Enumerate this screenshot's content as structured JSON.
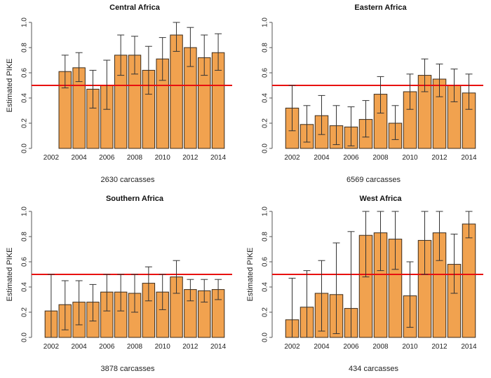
{
  "chart_data": [
    {
      "type": "bar",
      "title": "Central Africa",
      "ylabel": "Estimated PIKE",
      "caption": "2630 carcasses",
      "ylim": [
        0,
        1.0
      ],
      "yticks": [
        "0.0",
        "0.2",
        "0.4",
        "0.6",
        "0.8",
        "1.0"
      ],
      "xtick_labels": [
        "2002",
        "2004",
        "2006",
        "2008",
        "2010",
        "2012",
        "2014"
      ],
      "categories": [
        "2002",
        "2003",
        "2004",
        "2005",
        "2006",
        "2007",
        "2008",
        "2009",
        "2010",
        "2011",
        "2012",
        "2013",
        "2014"
      ],
      "values": [
        null,
        0.61,
        0.64,
        0.47,
        0.5,
        0.74,
        0.74,
        0.62,
        0.71,
        0.9,
        0.8,
        0.72,
        0.76
      ],
      "err_low": [
        null,
        0.48,
        0.53,
        0.32,
        0.31,
        0.58,
        0.59,
        0.43,
        0.54,
        0.77,
        0.65,
        0.58,
        0.62
      ],
      "err_high": [
        null,
        0.74,
        0.76,
        0.62,
        0.7,
        0.9,
        0.89,
        0.81,
        0.88,
        1.0,
        0.96,
        0.9,
        0.91
      ],
      "reference_line": 0.5
    },
    {
      "type": "bar",
      "title": "Eastern Africa",
      "ylabel": "",
      "caption": "6569 carcasses",
      "ylim": [
        0,
        1.0
      ],
      "yticks": [
        "0.0",
        "0.2",
        "0.4",
        "0.6",
        "0.8",
        "1.0"
      ],
      "xtick_labels": [
        "2002",
        "2004",
        "2006",
        "2008",
        "2010",
        "2012",
        "2014"
      ],
      "categories": [
        "2002",
        "2003",
        "2004",
        "2005",
        "2006",
        "2007",
        "2008",
        "2009",
        "2010",
        "2011",
        "2012",
        "2013",
        "2014"
      ],
      "values": [
        0.32,
        0.19,
        0.26,
        0.18,
        0.17,
        0.23,
        0.43,
        0.2,
        0.45,
        0.58,
        0.55,
        0.5,
        0.44
      ],
      "err_low": [
        0.14,
        0.05,
        0.11,
        0.03,
        0.02,
        0.09,
        0.28,
        0.07,
        0.31,
        0.45,
        0.41,
        0.37,
        0.31
      ],
      "err_high": [
        0.5,
        0.34,
        0.42,
        0.34,
        0.33,
        0.38,
        0.57,
        0.34,
        0.59,
        0.71,
        0.67,
        0.63,
        0.59
      ],
      "reference_line": 0.5
    },
    {
      "type": "bar",
      "title": "Southern Africa",
      "ylabel": "Estimated PIKE",
      "caption": "3878 carcasses",
      "ylim": [
        0,
        1.0
      ],
      "yticks": [
        "0.0",
        "0.2",
        "0.4",
        "0.6",
        "0.8",
        "1.0"
      ],
      "xtick_labels": [
        "2002",
        "2004",
        "2006",
        "2008",
        "2010",
        "2012",
        "2014"
      ],
      "categories": [
        "2002",
        "2003",
        "2004",
        "2005",
        "2006",
        "2007",
        "2008",
        "2009",
        "2010",
        "2011",
        "2012",
        "2013",
        "2014"
      ],
      "values": [
        0.21,
        0.26,
        0.28,
        0.28,
        0.36,
        0.36,
        0.35,
        0.43,
        0.36,
        0.48,
        0.38,
        0.37,
        0.38
      ],
      "err_low": [
        0.0,
        0.06,
        0.1,
        0.13,
        0.21,
        0.21,
        0.2,
        0.29,
        0.22,
        0.35,
        0.29,
        0.28,
        0.3
      ],
      "err_high": [
        0.5,
        0.45,
        0.45,
        0.42,
        0.5,
        0.5,
        0.5,
        0.56,
        0.5,
        0.61,
        0.46,
        0.46,
        0.46
      ],
      "reference_line": 0.5
    },
    {
      "type": "bar",
      "title": "West Africa",
      "ylabel": "Estimated PIKE",
      "caption": "434 carcasses",
      "ylim": [
        0,
        1.0
      ],
      "yticks": [
        "0.0",
        "0.2",
        "0.4",
        "0.6",
        "0.8",
        "1.0"
      ],
      "xtick_labels": [
        "2002",
        "2004",
        "2006",
        "2008",
        "2010",
        "2012",
        "2014"
      ],
      "categories": [
        "2002",
        "2003",
        "2004",
        "2005",
        "2006",
        "2007",
        "2008",
        "2009",
        "2010",
        "2011",
        "2012",
        "2013",
        "2014"
      ],
      "values": [
        0.14,
        0.24,
        0.35,
        0.34,
        0.23,
        0.81,
        0.83,
        0.78,
        0.33,
        0.77,
        0.83,
        0.58,
        0.9
      ],
      "err_low": [
        0.0,
        0.0,
        0.05,
        0.03,
        0.0,
        0.48,
        0.53,
        0.54,
        0.08,
        0.5,
        0.61,
        0.35,
        0.79
      ],
      "err_high": [
        0.47,
        0.53,
        0.61,
        0.75,
        0.84,
        1.0,
        1.0,
        1.0,
        0.6,
        1.0,
        1.0,
        0.82,
        1.0
      ],
      "reference_line": 0.5
    }
  ],
  "colors": {
    "bar_fill": "#f1a24f",
    "bar_stroke": "#3a2a1a",
    "error_bar": "#333333",
    "reference_line": "#e8100f",
    "axis": "#555555"
  }
}
